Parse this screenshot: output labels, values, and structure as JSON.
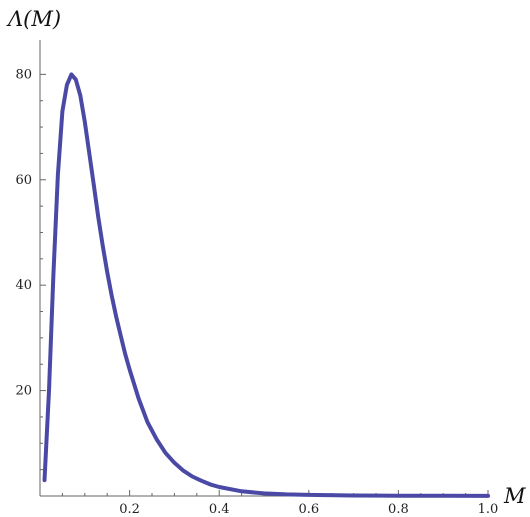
{
  "chart_data": {
    "type": "line",
    "title": "",
    "xlabel": "M",
    "ylabel": "Λ(M)",
    "xlim": [
      0,
      1.0
    ],
    "ylim": [
      0,
      85
    ],
    "grid": false,
    "legend": "none",
    "x_ticks": [
      {
        "value": 0.2,
        "label": "0.2"
      },
      {
        "value": 0.4,
        "label": "0.4"
      },
      {
        "value": 0.6,
        "label": "0.6"
      },
      {
        "value": 0.8,
        "label": "0.8"
      },
      {
        "value": 1.0,
        "label": "1.0"
      }
    ],
    "y_ticks": [
      {
        "value": 20,
        "label": "20"
      },
      {
        "value": 40,
        "label": "40"
      },
      {
        "value": 60,
        "label": "60"
      },
      {
        "value": 80,
        "label": "80"
      }
    ],
    "series": [
      {
        "color": "#4a4aa6",
        "x": [
          0.01,
          0.02,
          0.03,
          0.04,
          0.05,
          0.06,
          0.07,
          0.08,
          0.09,
          0.1,
          0.11,
          0.12,
          0.13,
          0.14,
          0.15,
          0.16,
          0.17,
          0.18,
          0.19,
          0.2,
          0.22,
          0.24,
          0.26,
          0.28,
          0.3,
          0.32,
          0.34,
          0.36,
          0.38,
          0.4,
          0.45,
          0.5,
          0.55,
          0.6,
          0.7,
          0.8,
          0.9,
          1.0
        ],
        "y": [
          3,
          20,
          42,
          61,
          73,
          78,
          80,
          79,
          76,
          71,
          65,
          59,
          53,
          47.5,
          42.5,
          38,
          34,
          30.5,
          27,
          24,
          18.5,
          14,
          10.8,
          8.2,
          6.3,
          4.8,
          3.7,
          2.9,
          2.2,
          1.7,
          0.9,
          0.5,
          0.3,
          0.2,
          0.1,
          0.05,
          0.03,
          0.02
        ]
      }
    ]
  }
}
